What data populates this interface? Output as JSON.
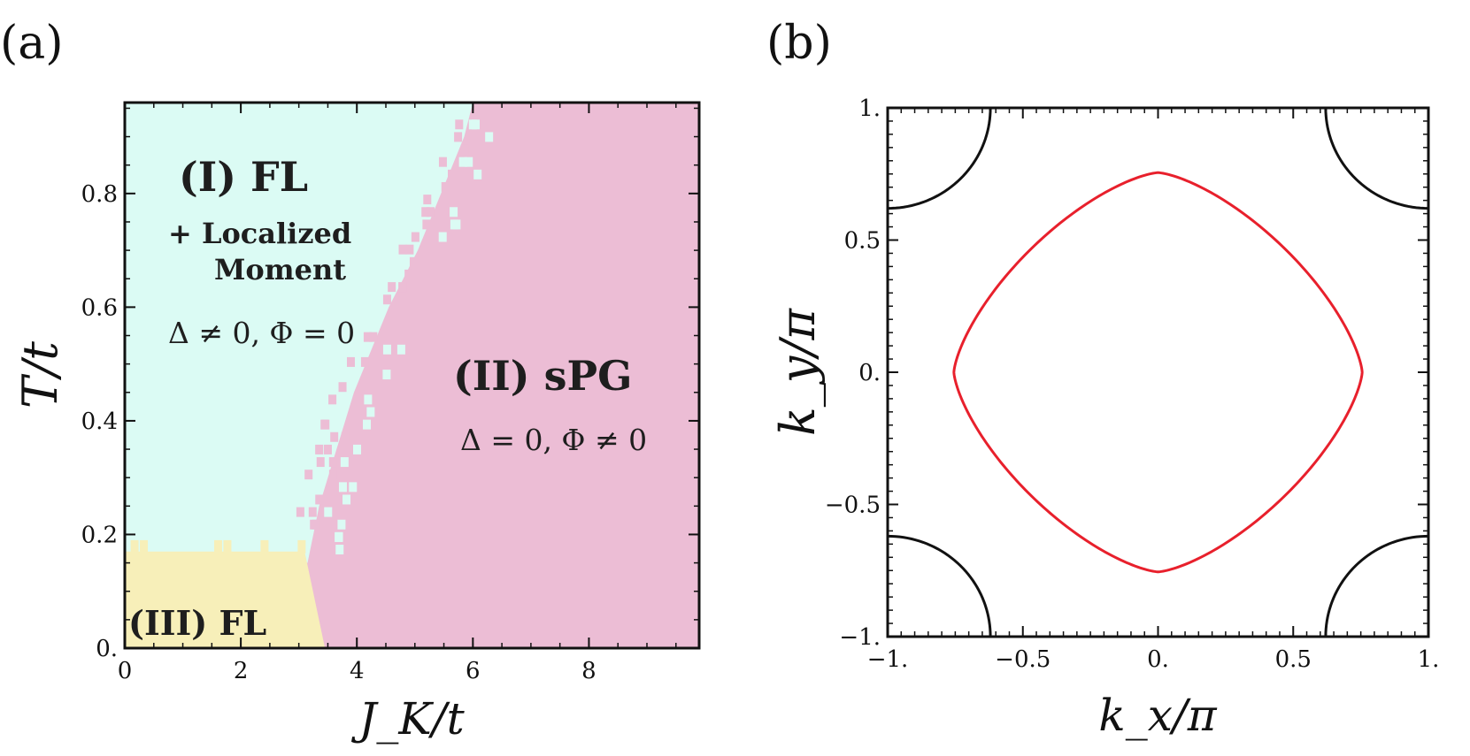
{
  "colors": {
    "fl_region": "#dbfbf4",
    "spg_region": "#ecbdd5",
    "fl3_region": "#f7efb9",
    "red_curve": "#e8202c",
    "black_curve": "#111111",
    "frame": "#111111"
  },
  "chart_data": [
    {
      "panel_label": "(a)",
      "type": "heatmap",
      "title": "",
      "xlabel": "J_K/t",
      "ylabel": "T/t",
      "xlim": [
        0,
        9.9
      ],
      "ylim": [
        0,
        0.96
      ],
      "xticks": [
        0,
        2,
        4,
        6,
        8
      ],
      "xtick_labels": [
        "0",
        "2",
        "4",
        "6",
        "8"
      ],
      "yticks": [
        0,
        0.2,
        0.4,
        0.6,
        0.8
      ],
      "ytick_labels": [
        "0.",
        "0.2",
        "0.4",
        "0.6",
        "0.8"
      ],
      "phase_boundary_FL_sPG": {
        "T": [
          0.96,
          0.9,
          0.85,
          0.8,
          0.75,
          0.7,
          0.65,
          0.6,
          0.55,
          0.5,
          0.45,
          0.4,
          0.35,
          0.3,
          0.25,
          0.2,
          0.15
        ],
        "J": [
          6.0,
          5.85,
          5.65,
          5.45,
          5.25,
          5.05,
          4.8,
          4.55,
          4.35,
          4.15,
          3.95,
          3.8,
          3.65,
          3.5,
          3.35,
          3.25,
          3.15
        ]
      },
      "phase_boundary_FL3": {
        "T_top": 0.17,
        "J_edge": [
          [
            0.0,
            3.45
          ],
          [
            0.17,
            3.1
          ]
        ]
      },
      "regions": [
        {
          "id": "I",
          "title": "(I) FL",
          "subtitle_line1": "+ Localized",
          "subtitle_line2": "Moment",
          "condition": "Δ ≠ 0, Φ = 0",
          "color_key": "fl_region"
        },
        {
          "id": "II",
          "title": "(II) sPG",
          "condition": "Δ = 0, Φ ≠ 0",
          "color_key": "spg_region"
        },
        {
          "id": "III",
          "title": "(III) FL",
          "color_key": "fl3_region"
        }
      ]
    },
    {
      "panel_label": "(b)",
      "type": "line",
      "title": "",
      "xlabel": "k_x/π",
      "ylabel": "k_y/π",
      "xlim": [
        -1,
        1
      ],
      "ylim": [
        -1,
        1
      ],
      "xticks": [
        -1,
        -0.5,
        0,
        0.5,
        1
      ],
      "xtick_labels": [
        "−1.",
        "−0.5",
        "0.",
        "0.5",
        "1."
      ],
      "yticks": [
        -1,
        -0.5,
        0,
        0.5,
        1
      ],
      "ytick_labels": [
        "−1.",
        "−0.5",
        "0.",
        "0.5",
        "1."
      ],
      "series": [
        {
          "name": "red pocket",
          "color_key": "red_curve",
          "shape": "superellipse",
          "half_width": 0.755,
          "exponent": 1.45
        },
        {
          "name": "corner arcs",
          "color_key": "black_curve",
          "shape": "quarter circles centered at (±1, ±1)",
          "radius": 0.38
        }
      ]
    }
  ]
}
